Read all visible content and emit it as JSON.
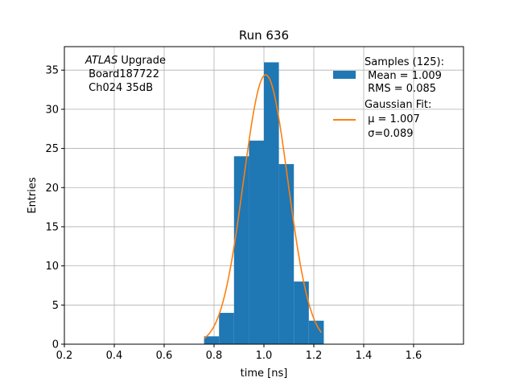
{
  "chart_data": {
    "type": "bar",
    "title": "Run 636",
    "xlabel": "time [ns]",
    "ylabel": "Entries",
    "xlim": [
      0.2,
      1.8
    ],
    "ylim": [
      0,
      38
    ],
    "xticks": [
      0.2,
      0.4,
      0.6,
      0.8,
      1.0,
      1.2,
      1.4,
      1.6
    ],
    "xtick_labels": [
      "0.2",
      "0.4",
      "0.6",
      "0.8",
      "1.0",
      "1.2",
      "1.4",
      "1.6"
    ],
    "yticks": [
      0,
      5,
      10,
      15,
      20,
      25,
      30,
      35
    ],
    "ytick_labels": [
      "0",
      "5",
      "10",
      "15",
      "20",
      "25",
      "30",
      "35"
    ],
    "grid": true,
    "bin_edges": [
      0.76,
      0.82,
      0.88,
      0.94,
      1.0,
      1.06,
      1.12,
      1.18,
      1.24
    ],
    "histogram": [
      1,
      4,
      24,
      26,
      36,
      23,
      8,
      3
    ],
    "fit": {
      "mu": 1.007,
      "sigma": 0.089,
      "amplitude": 34.4,
      "x_range": [
        0.76,
        1.23
      ]
    },
    "colors": {
      "histogram": "#1f77b4",
      "fit": "#ff7f0e",
      "grid": "#b0b0b0"
    },
    "legend": {
      "placement": "top-right",
      "samples_lines": [
        "Samples (125):",
        " Mean = 1.009",
        " RMS = 0.085"
      ],
      "fit_lines": [
        "Gaussian Fit:",
        " μ = 1.007",
        " σ=0.089"
      ]
    },
    "annotation": {
      "atlas": "ATLAS",
      "upgrade": " Upgrade",
      "line2": " Board187722",
      "line3": " Ch024 35dB"
    }
  }
}
